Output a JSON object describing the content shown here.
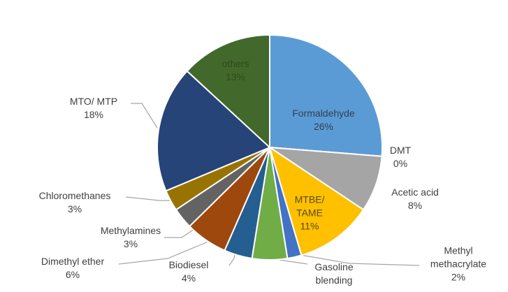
{
  "chart_data": {
    "type": "pie",
    "categories": [
      "Formaldehyde",
      "DMT",
      "Acetic acid",
      "MTBE/ TAME",
      "Methyl methacrylate",
      "Gasoline blending",
      "Biodiesel",
      "Dimethyl ether",
      "Methylamines",
      "Chloromethanes",
      "MTO/ MTP",
      "others"
    ],
    "values": [
      26,
      0,
      8,
      11,
      2,
      5,
      4,
      6,
      3,
      3,
      18,
      13
    ],
    "value_labels": [
      "26%",
      "0%",
      "8%",
      "11%",
      "2%",
      null,
      "4%",
      "6%",
      "3%",
      "3%",
      "18%",
      "13%"
    ],
    "colors": [
      "#5b9bd5",
      "#bfbfbf",
      "#a5a5a5",
      "#ffc000",
      "#4472c4",
      "#70ad47",
      "#255e91",
      "#9e480e",
      "#636363",
      "#997300",
      "#264478",
      "#43682b"
    ]
  }
}
